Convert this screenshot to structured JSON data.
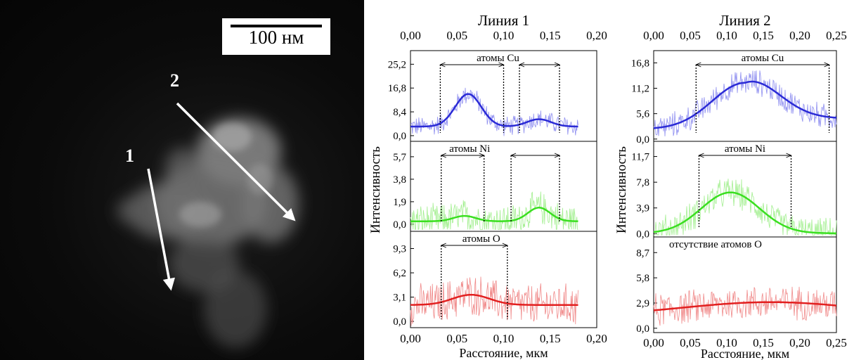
{
  "micrograph": {
    "scale_bar_label": "100 нм",
    "line_labels": [
      "1",
      "2"
    ]
  },
  "chart_data": [
    {
      "type": "line",
      "title": "Линия 1",
      "xlabel": "Расстояние, мкм",
      "ylabel": "Интенсивность",
      "xlim": [
        0,
        0.2
      ],
      "x_ticks": [
        "0,00",
        "0,05",
        "0,10",
        "0,15",
        "0,20"
      ],
      "panels": [
        {
          "annotation": "атомы Cu",
          "y_ticks": [
            "0,0",
            "8,4",
            "16,8",
            "25,2"
          ],
          "ylim": [
            -2,
            30
          ],
          "color": "#2b2bd6",
          "raw_color": "#8f8ff0",
          "baseline": 3.2,
          "noise": 4.0,
          "peaks": [
            [
              0.062,
              11.5,
              0.014
            ],
            [
              0.138,
              2.6,
              0.013
            ]
          ],
          "brackets": [
            [
              0.032,
              0.1
            ],
            [
              0.117,
              0.16
            ]
          ]
        },
        {
          "annotation": "атомы Ni",
          "y_ticks": [
            "0,0",
            "1,9",
            "3,8",
            "5,7"
          ],
          "ylim": [
            -0.6,
            7
          ],
          "color": "#3adf20",
          "raw_color": "#a3ef90",
          "baseline": 0.25,
          "noise": 1.6,
          "peaks": [
            [
              0.058,
              0.45,
              0.012
            ],
            [
              0.138,
              1.15,
              0.012
            ]
          ],
          "brackets": [
            [
              0.033,
              0.079
            ],
            [
              0.108,
              0.16
            ]
          ]
        },
        {
          "annotation": "атомы О",
          "y_ticks": [
            "0,0",
            "3,1",
            "6,2",
            "9,3"
          ],
          "ylim": [
            -0.8,
            11.5
          ],
          "color": "#e22020",
          "raw_color": "#f08a8a",
          "baseline": 2.1,
          "noise": 3.0,
          "peaks": [
            [
              0.065,
              1.3,
              0.02
            ]
          ],
          "brackets": [
            [
              0.033,
              0.104
            ]
          ]
        }
      ]
    },
    {
      "type": "line",
      "title": "Линия 2",
      "xlabel": "Расстояние, мкм",
      "ylabel": "Интенсивность",
      "xlim": [
        0,
        0.25
      ],
      "x_ticks": [
        "0,00",
        "0,05",
        "0,10",
        "0,15",
        "0,20",
        "0,25"
      ],
      "panels": [
        {
          "annotation": "атомы Cu",
          "y_ticks": [
            "0,0",
            "5,6",
            "11,2",
            "16,8"
          ],
          "ylim": [
            -0.5,
            19.5
          ],
          "color": "#2b2bd6",
          "raw_color": "#8f8ff0",
          "baseline": 2.2,
          "noise": 3.2,
          "peaks": [
            [
              0.125,
              10.2,
              0.045
            ]
          ],
          "tail": 2.4,
          "brackets": [
            [
              0.058,
              0.24
            ]
          ]
        },
        {
          "annotation": "атомы Ni",
          "y_ticks": [
            "0,0",
            "3,9",
            "7,8",
            "11,7"
          ],
          "ylim": [
            -0.5,
            14
          ],
          "color": "#3adf20",
          "raw_color": "#a3ef90",
          "baseline": 0.05,
          "noise": 2.6,
          "peaks": [
            [
              0.105,
              6.2,
              0.04
            ]
          ],
          "brackets": [
            [
              0.062,
              0.188
            ]
          ]
        },
        {
          "annotation": "отсутствие атомов О",
          "y_ticks": [
            "0,0",
            "2,9",
            "5,8",
            "8,7"
          ],
          "ylim": [
            -0.5,
            10.5
          ],
          "color": "#e22020",
          "raw_color": "#f08a8a",
          "baseline": 1.4,
          "noise": 2.2,
          "peaks": [
            [
              0.16,
              1.6,
              0.12
            ]
          ],
          "brackets": []
        }
      ]
    }
  ]
}
